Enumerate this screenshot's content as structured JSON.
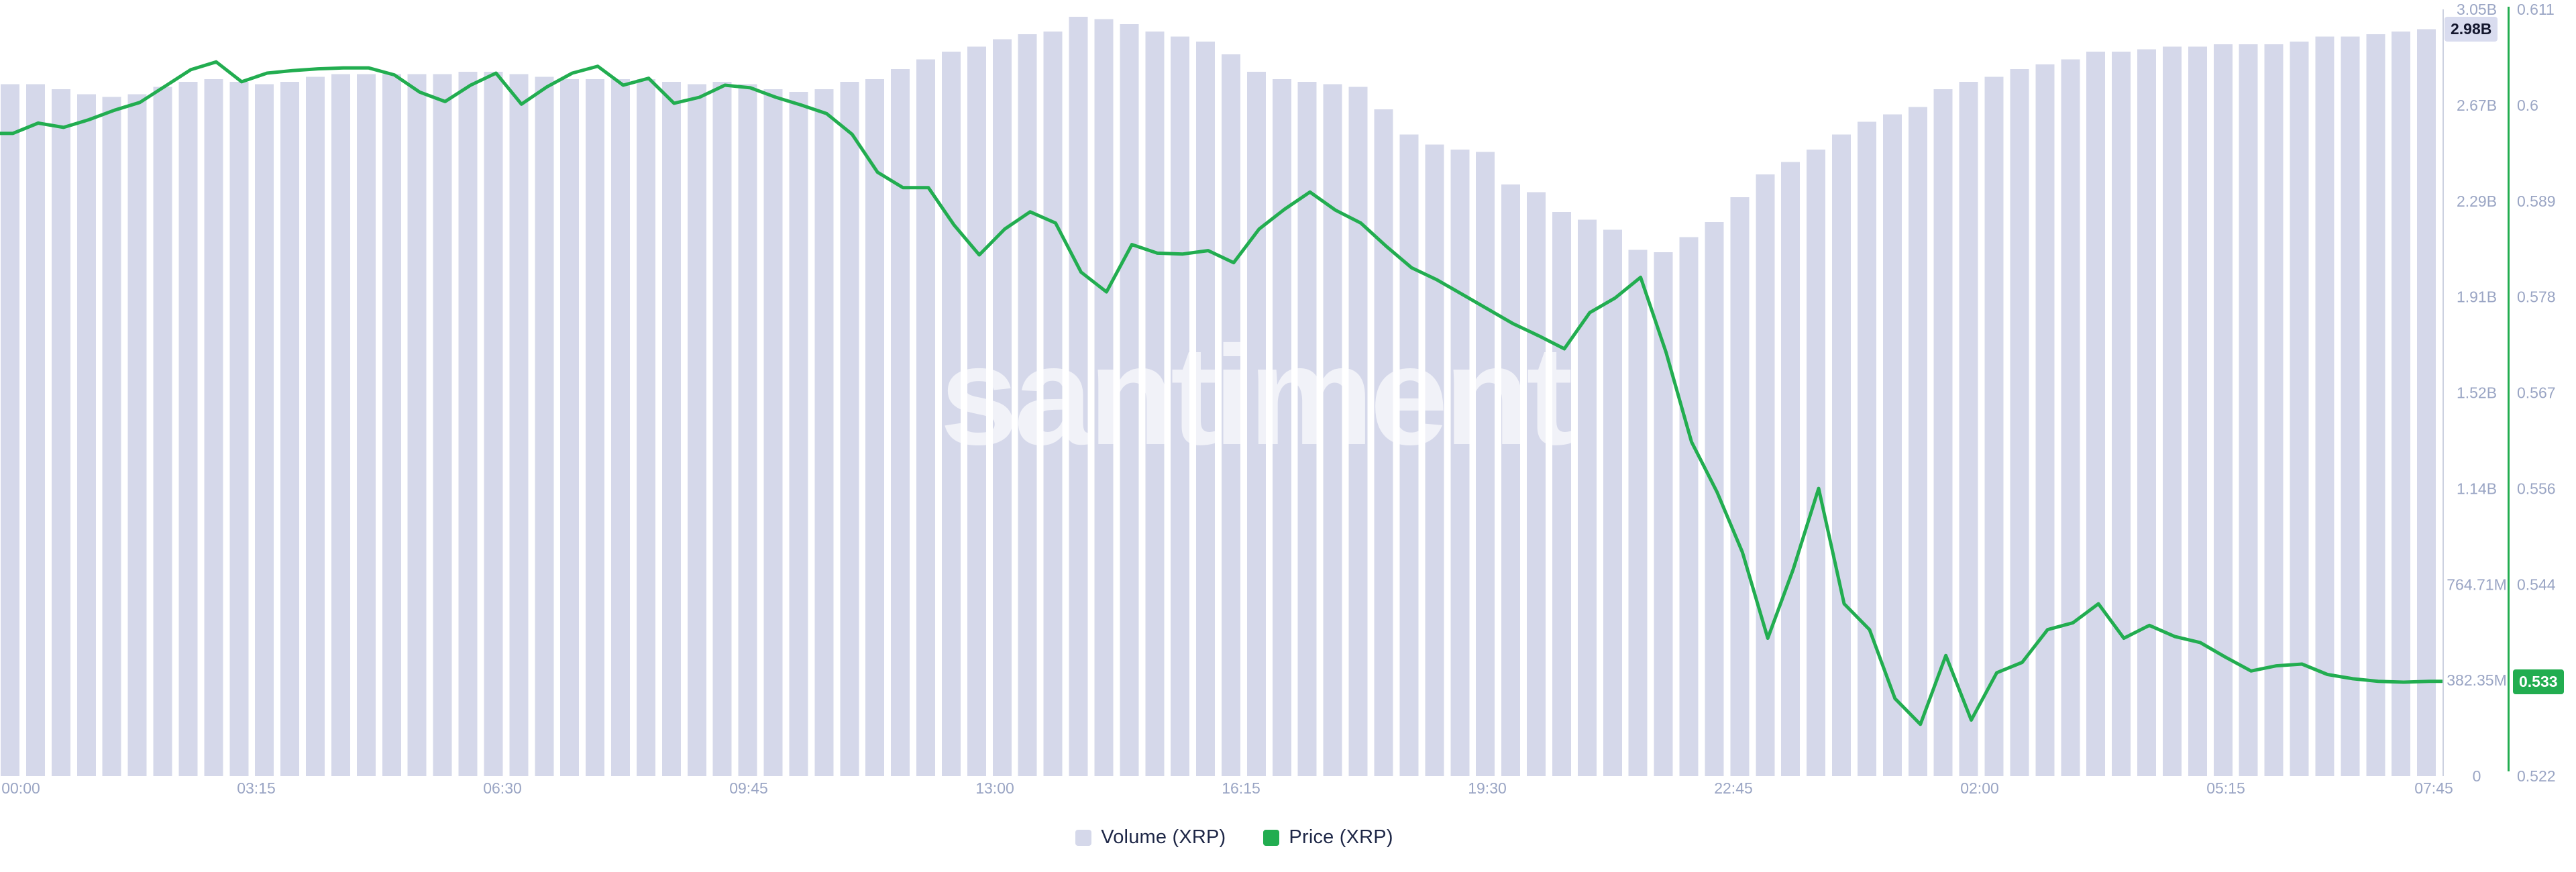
{
  "watermark": "santiment",
  "colors": {
    "bar": "#d5d8ea",
    "line": "#22ad50",
    "axis_text": "#9aa5c4",
    "volume_axis_line": "#ccd1e0",
    "price_axis_line": "#22ad50",
    "volume_badge_bg": "#d9dcef",
    "price_badge_bg": "#22ad50",
    "legend_text": "#1e2747"
  },
  "chart_data": {
    "type": "bar+line",
    "title": "",
    "grid": false,
    "legend_position": "bottom-center",
    "x": {
      "start": "00:00",
      "interval_minutes": 20,
      "points": 96,
      "tick_labels": [
        "00:00",
        "03:15",
        "06:30",
        "09:45",
        "13:00",
        "16:15",
        "19:30",
        "22:45",
        "02:00",
        "05:15",
        "07:45"
      ]
    },
    "volume_axis": {
      "tick_labels": [
        "3.05B",
        "2.67B",
        "2.29B",
        "1.91B",
        "1.52B",
        "1.14B",
        "764.71M",
        "382.35M",
        "0"
      ],
      "max_value": 3.0588,
      "min_value": 0,
      "current_label": "2.98B",
      "current_value": 2.98
    },
    "price_axis": {
      "tick_labels": [
        "0.611",
        "0.6",
        "0.589",
        "0.578",
        "0.567",
        "0.556",
        "0.544",
        "0.533",
        "0.522"
      ],
      "max_value": 0.611,
      "min_value": 0.522,
      "current_label": "0.533",
      "current_value": 0.533
    },
    "series": [
      {
        "name": "Volume (XRP)",
        "type": "bar",
        "unit": "billions",
        "axis": "volume",
        "values": [
          2.76,
          2.76,
          2.74,
          2.72,
          2.71,
          2.72,
          2.75,
          2.77,
          2.78,
          2.77,
          2.76,
          2.77,
          2.79,
          2.8,
          2.8,
          2.8,
          2.8,
          2.8,
          2.81,
          2.81,
          2.8,
          2.79,
          2.78,
          2.78,
          2.78,
          2.78,
          2.77,
          2.76,
          2.77,
          2.76,
          2.74,
          2.73,
          2.74,
          2.77,
          2.78,
          2.82,
          2.86,
          2.89,
          2.91,
          2.94,
          2.96,
          2.97,
          3.03,
          3.02,
          3.0,
          2.97,
          2.95,
          2.93,
          2.88,
          2.81,
          2.78,
          2.77,
          2.76,
          2.75,
          2.66,
          2.56,
          2.52,
          2.5,
          2.49,
          2.36,
          2.33,
          2.25,
          2.22,
          2.18,
          2.1,
          2.09,
          2.15,
          2.21,
          2.31,
          2.4,
          2.45,
          2.5,
          2.56,
          2.61,
          2.64,
          2.67,
          2.74,
          2.77,
          2.79,
          2.82,
          2.84,
          2.86,
          2.89,
          2.89,
          2.9,
          2.91,
          2.91,
          2.92,
          2.92,
          2.92,
          2.93,
          2.95,
          2.95,
          2.96,
          2.97,
          2.98
        ]
      },
      {
        "name": "Price (XRP)",
        "type": "line",
        "unit": "USD",
        "axis": "price",
        "values": [
          0.5966,
          0.5978,
          0.5973,
          0.5982,
          0.5993,
          0.6002,
          0.6021,
          0.604,
          0.6049,
          0.6026,
          0.6036,
          0.6039,
          0.6041,
          0.6042,
          0.6042,
          0.6034,
          0.6014,
          0.6003,
          0.6022,
          0.6036,
          0.6,
          0.602,
          0.6036,
          0.6044,
          0.6022,
          0.603,
          0.6001,
          0.6008,
          0.6022,
          0.6019,
          0.6008,
          0.5999,
          0.5989,
          0.5965,
          0.5921,
          0.5903,
          0.5903,
          0.586,
          0.5825,
          0.5855,
          0.5875,
          0.5862,
          0.5805,
          0.5782,
          0.5837,
          0.5827,
          0.5826,
          0.583,
          0.5816,
          0.5855,
          0.5878,
          0.5898,
          0.5877,
          0.5862,
          0.5835,
          0.581,
          0.5796,
          0.5779,
          0.5762,
          0.5745,
          0.5731,
          0.5716,
          0.5758,
          0.5775,
          0.5799,
          0.5712,
          0.5608,
          0.555,
          0.548,
          0.538,
          0.546,
          0.5554,
          0.542,
          0.539,
          0.531,
          0.528,
          0.536,
          0.5285,
          0.534,
          0.5352,
          0.539,
          0.5398,
          0.542,
          0.538,
          0.5395,
          0.5382,
          0.5375,
          0.5358,
          0.5342,
          0.5348,
          0.535,
          0.5338,
          0.5333,
          0.533,
          0.5329,
          0.533
        ]
      }
    ]
  }
}
